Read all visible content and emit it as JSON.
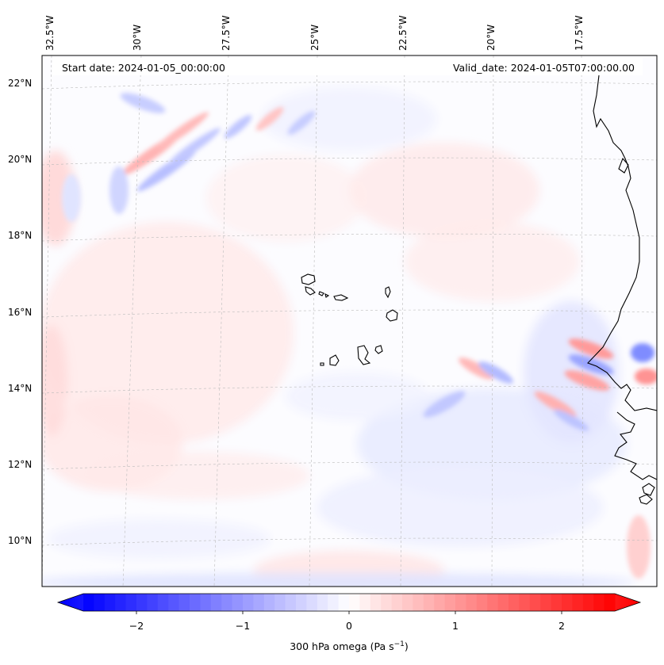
{
  "header": {
    "start_date": "Start date: 2024-01-05_00:00:00",
    "valid_date": "Valid_date: 2024-01-05T07:00:00.00"
  },
  "longitude_labels": [
    "32.5°W",
    "30°W",
    "27.5°W",
    "25°W",
    "22.5°W",
    "20°W",
    "17.5°W"
  ],
  "latitude_labels": [
    "22°N",
    "20°N",
    "18°N",
    "16°N",
    "14°N",
    "12°N",
    "10°N"
  ],
  "colorbar": {
    "ticks": [
      "−2",
      "−1",
      "0",
      "1",
      "2"
    ],
    "tick_values": [
      -2,
      -1,
      0,
      1,
      2
    ],
    "range": [
      -2.5,
      2.5
    ],
    "label_text": "300 hPa omega (Pa s",
    "label_exponent": "−1",
    "label_close": ")",
    "colors": {
      "min": "#0000ff",
      "mid": "#ffffff",
      "max": "#ff0000"
    }
  },
  "map": {
    "projection": "Lambert conformal",
    "lon_range": [
      "32.5°W",
      "15°W"
    ],
    "lat_range": [
      "9°N",
      "22.5°N"
    ],
    "gridlines": true,
    "coastline_color": "#000000",
    "field": "300 hPa omega"
  }
}
